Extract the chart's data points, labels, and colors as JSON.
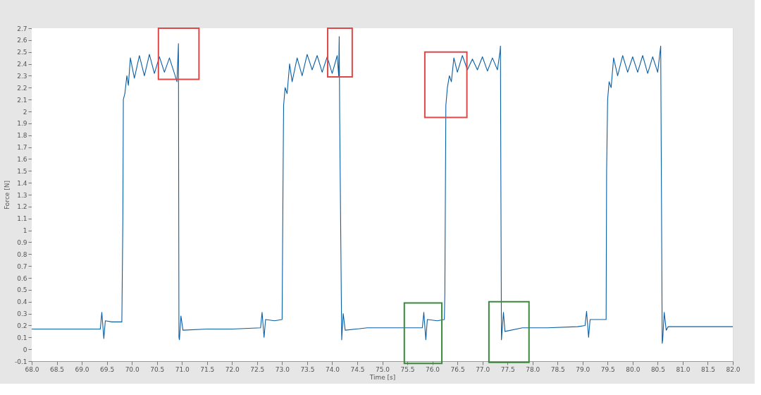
{
  "chart_data": {
    "type": "line",
    "xlabel": "Time [s]",
    "ylabel": "Force [N]",
    "x": [
      68.0,
      68.5,
      69.0,
      69.37,
      69.4,
      69.44,
      69.47,
      69.6,
      69.8,
      69.82,
      69.83,
      69.86,
      69.9,
      69.93,
      69.97,
      70.05,
      70.15,
      70.25,
      70.35,
      70.45,
      70.55,
      70.65,
      70.75,
      70.85,
      70.9,
      70.93,
      70.94,
      70.95,
      70.98,
      71.02,
      71.5,
      72.0,
      72.57,
      72.6,
      72.64,
      72.67,
      72.85,
      73.0,
      73.02,
      73.03,
      73.06,
      73.1,
      73.15,
      73.2,
      73.3,
      73.4,
      73.5,
      73.6,
      73.7,
      73.8,
      73.9,
      74.0,
      74.1,
      74.13,
      74.14,
      74.15,
      74.19,
      74.22,
      74.26,
      74.7,
      75.2,
      75.8,
      75.83,
      75.87,
      75.9,
      76.1,
      76.24,
      76.25,
      76.27,
      76.3,
      76.34,
      76.38,
      76.43,
      76.5,
      76.6,
      76.7,
      76.8,
      76.9,
      77.0,
      77.1,
      77.2,
      77.3,
      77.35,
      77.36,
      77.37,
      77.38,
      77.42,
      77.45,
      77.8,
      78.3,
      78.9,
      79.05,
      79.08,
      79.12,
      79.15,
      79.3,
      79.47,
      79.48,
      79.5,
      79.53,
      79.57,
      79.62,
      79.7,
      79.8,
      79.9,
      80.0,
      80.1,
      80.2,
      80.3,
      80.4,
      80.5,
      80.56,
      80.58,
      80.59,
      80.6,
      80.63,
      80.67,
      80.71,
      81.0,
      81.5,
      82.0
    ],
    "values": [
      0.17,
      0.17,
      0.17,
      0.17,
      0.31,
      0.09,
      0.24,
      0.23,
      0.23,
      1.1,
      2.1,
      2.15,
      2.3,
      2.22,
      2.45,
      2.28,
      2.47,
      2.3,
      2.48,
      2.32,
      2.46,
      2.33,
      2.45,
      2.32,
      2.25,
      2.57,
      0.1,
      0.08,
      0.28,
      0.16,
      0.17,
      0.17,
      0.18,
      0.31,
      0.1,
      0.25,
      0.24,
      0.25,
      1.5,
      2.05,
      2.2,
      2.15,
      2.4,
      2.25,
      2.45,
      2.3,
      2.48,
      2.35,
      2.47,
      2.33,
      2.46,
      2.32,
      2.47,
      2.3,
      2.63,
      1.95,
      0.08,
      0.3,
      0.16,
      0.18,
      0.18,
      0.18,
      0.31,
      0.08,
      0.25,
      0.24,
      0.25,
      0.47,
      2.05,
      2.2,
      2.3,
      2.25,
      2.45,
      2.33,
      2.47,
      2.35,
      2.44,
      2.35,
      2.46,
      2.34,
      2.45,
      2.35,
      2.5,
      2.55,
      1.22,
      0.08,
      0.31,
      0.15,
      0.18,
      0.18,
      0.19,
      0.2,
      0.32,
      0.1,
      0.25,
      0.25,
      0.25,
      1.5,
      2.1,
      2.25,
      2.2,
      2.45,
      2.3,
      2.47,
      2.33,
      2.46,
      2.33,
      2.47,
      2.32,
      2.46,
      2.33,
      2.55,
      0.9,
      0.05,
      0.08,
      0.31,
      0.16,
      0.19,
      0.19,
      0.19,
      0.19
    ],
    "color": "#0b5fa5",
    "xlim": [
      68.0,
      82.0
    ],
    "xticks": [
      {
        "value": 68,
        "label": "68.0"
      },
      {
        "value": 68.5,
        "label": "68.5"
      },
      {
        "value": 69,
        "label": "69.0"
      },
      {
        "value": 69.5,
        "label": "69.5"
      },
      {
        "value": 70,
        "label": "70.0"
      },
      {
        "value": 70.5,
        "label": "70.5"
      },
      {
        "value": 71,
        "label": "71.0"
      },
      {
        "value": 71.5,
        "label": "71.5"
      },
      {
        "value": 72,
        "label": "72.0"
      },
      {
        "value": 72.5,
        "label": "72.5"
      },
      {
        "value": 73,
        "label": "73.0"
      },
      {
        "value": 73.5,
        "label": "73.5"
      },
      {
        "value": 74,
        "label": "74.0"
      },
      {
        "value": 74.5,
        "label": "74.5"
      },
      {
        "value": 75,
        "label": "75.0"
      },
      {
        "value": 75.5,
        "label": "75.5"
      },
      {
        "value": 76,
        "label": "76.0"
      },
      {
        "value": 76.5,
        "label": "76.5"
      },
      {
        "value": 77,
        "label": "77.0"
      },
      {
        "value": 77.5,
        "label": "77.5"
      },
      {
        "value": 78,
        "label": "78.0"
      },
      {
        "value": 78.5,
        "label": "78.5"
      },
      {
        "value": 79,
        "label": "79.0"
      },
      {
        "value": 79.5,
        "label": "79.5"
      },
      {
        "value": 80,
        "label": "80.0"
      },
      {
        "value": 80.5,
        "label": "80.5"
      },
      {
        "value": 81,
        "label": "81.0"
      },
      {
        "value": 81.5,
        "label": "81.5"
      },
      {
        "value": 82,
        "label": "82.0"
      }
    ],
    "ylim": [
      -0.1,
      2.7
    ],
    "yticks": [
      -0.1,
      0,
      0.1,
      0.2,
      0.3,
      0.4,
      0.5,
      0.6,
      0.7,
      0.8,
      0.9,
      1,
      1.1,
      1.2,
      1.3,
      1.4,
      1.5,
      1.6,
      1.7,
      1.8,
      1.9,
      2,
      2.1,
      2.2,
      2.3,
      2.4,
      2.5,
      2.6,
      2.7
    ],
    "grid": false,
    "marker": "none",
    "line_style": "solid"
  }
}
